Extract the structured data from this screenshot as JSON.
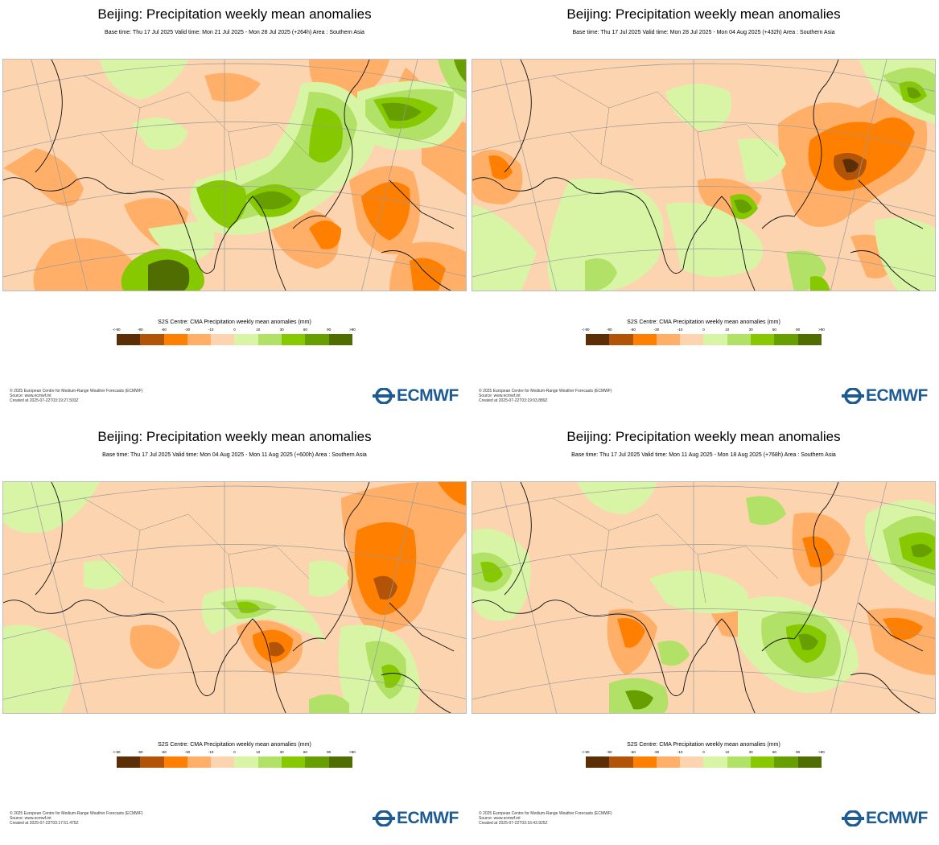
{
  "colors": {
    "brand": "#1d5b91",
    "classes": [
      "#5c2e05",
      "#b15408",
      "#ff7f00",
      "#ffaf68",
      "#fdd4b0",
      "#ffffff",
      "#d8f5a5",
      "#b1e166",
      "#86c900",
      "#689f00",
      "#4f6d00"
    ]
  },
  "panels": [
    {
      "title": "Beijing: Precipitation weekly mean anomalies",
      "subtitle": "Base time: Thu 17 Jul 2025 Valid time: Mon 21 Jul 2025 - Mon 28 Jul 2025 (+264h) Area : Southern Asia",
      "legend_title": "S2S Centre: CMA Precipitation weekly mean anomalies (mm)",
      "ticks": [
        "<-90",
        "-90",
        "-60",
        "-30",
        "-10",
        "0",
        "10",
        "30",
        "60",
        "90",
        ">90"
      ],
      "footer": [
        "© 2025 European Centre for Medium-Range Weather Forecasts (ECMWF)",
        "Source: www.ecmwf.int",
        "Created at 2025-07-22T03:19:27.503Z"
      ],
      "logo": "ECMWF"
    },
    {
      "title": "Beijing: Precipitation weekly mean anomalies",
      "subtitle": "Base time: Thu 17 Jul 2025 Valid time: Mon 28 Jul 2025 - Mon 04 Aug 2025 (+432h) Area : Southern Asia",
      "legend_title": "S2S Centre: CMA Precipitation weekly mean anomalies (mm)",
      "ticks": [
        "<-90",
        "-90",
        "-60",
        "-30",
        "-10",
        "0",
        "10",
        "30",
        "60",
        "90",
        ">90"
      ],
      "footer": [
        "© 2025 European Centre for Medium-Range Weather Forecasts (ECMWF)",
        "Source: www.ecmwf.int",
        "Created at 2025-07-22T03:19:03.889Z"
      ],
      "logo": "ECMWF"
    },
    {
      "title": "Beijing: Precipitation weekly mean anomalies",
      "subtitle": "Base time: Thu 17 Jul 2025 Valid time: Mon 04 Aug 2025 - Mon 11 Aug 2025 (+600h) Area : Southern Asia",
      "legend_title": "S2S Centre: CMA Precipitation weekly mean anomalies (mm)",
      "ticks": [
        "<-90",
        "-90",
        "-60",
        "-30",
        "-10",
        "0",
        "10",
        "30",
        "60",
        "90",
        ">90"
      ],
      "footer": [
        "© 2025 European Centre for Medium-Range Weather Forecasts (ECMWF)",
        "Source: www.ecmwf.int",
        "Created at 2025-07-22T03:17:51.475Z"
      ],
      "logo": "ECMWF"
    },
    {
      "title": "Beijing: Precipitation weekly mean anomalies",
      "subtitle": "Base time: Thu 17 Jul 2025 Valid time: Mon 11 Aug 2025 - Mon 18 Aug 2025 (+768h) Area : Southern Asia",
      "legend_title": "S2S Centre: CMA Precipitation weekly mean anomalies (mm)",
      "ticks": [
        "<-90",
        "-90",
        "-60",
        "-30",
        "-10",
        "0",
        "10",
        "30",
        "60",
        "90",
        ">90"
      ],
      "footer": [
        "© 2025 European Centre for Medium-Range Weather Forecasts (ECMWF)",
        "Source: www.ecmwf.int",
        "Created at 2025-07-22T03:16:43.925Z"
      ],
      "logo": "ECMWF"
    }
  ]
}
